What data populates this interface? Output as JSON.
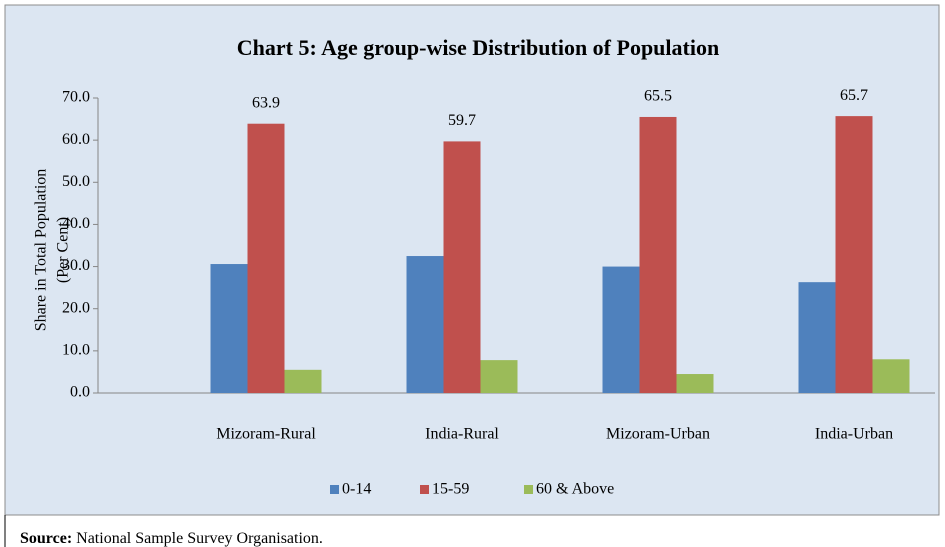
{
  "chart_data": {
    "type": "bar",
    "title": "Chart 5: Age group-wise Distribution of Population",
    "ylabel": [
      "Share in Total Population",
      "(Per Cent)"
    ],
    "categories": [
      "Mizoram-Rural",
      "India-Rural",
      "Mizoram-Urban",
      "India-Urban"
    ],
    "series": [
      {
        "name": "0-14",
        "color": "#4f81bd",
        "values": [
          30.6,
          32.5,
          30.0,
          26.3
        ]
      },
      {
        "name": "15-59",
        "color": "#c0504d",
        "values": [
          63.9,
          59.7,
          65.5,
          65.7
        ],
        "data_labels": true
      },
      {
        "name": "60 & Above",
        "color": "#9bbb59",
        "values": [
          5.5,
          7.8,
          4.5,
          8.0
        ]
      }
    ],
    "ylim": [
      0,
      70
    ],
    "yticks": [
      {
        "value": 0,
        "label": "0.0"
      },
      {
        "value": 10,
        "label": "10.0"
      },
      {
        "value": 20,
        "label": "20.0"
      },
      {
        "value": 30,
        "label": "30.0"
      },
      {
        "value": 40,
        "label": "40.0"
      },
      {
        "value": 50,
        "label": "50.0"
      },
      {
        "value": 60,
        "label": "60.0"
      },
      {
        "value": 70,
        "label": "70.0"
      }
    ],
    "legend": "bottom",
    "source": {
      "label": "Source:",
      "text": "National Sample Survey Organisation."
    }
  }
}
